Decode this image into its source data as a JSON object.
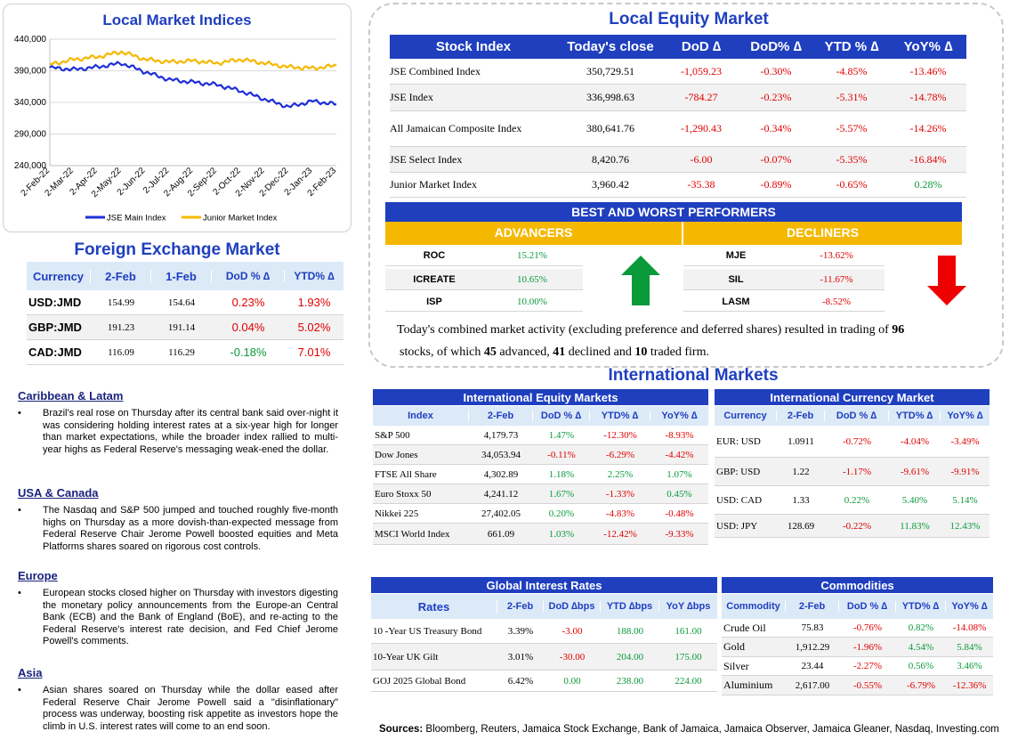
{
  "local_indices": {
    "title": "Local Market Indices",
    "chart_data": {
      "type": "line",
      "x": [
        "2-Feb-22",
        "2-Mar-22",
        "2-Apr-22",
        "2-May-22",
        "2-Jun-22",
        "2-Jul-22",
        "2-Aug-22",
        "2-Sep-22",
        "2-Oct-22",
        "2-Nov-22",
        "2-Dec-22",
        "2-Jan-23",
        "2-Feb-23"
      ],
      "yticks": [
        "440,000",
        "390,000",
        "340,000",
        "290,000",
        "240,000"
      ],
      "ylim": [
        240000,
        440000
      ],
      "series": [
        {
          "name": "JSE Main Index",
          "color": "#1f2fd8",
          "values": [
            395000,
            392000,
            396000,
            402000,
            388000,
            376000,
            372000,
            368000,
            358000,
            345000,
            333000,
            342000,
            337000
          ]
        },
        {
          "name": "Junior Market Index",
          "color": "#f5b800",
          "values": [
            400000,
            408000,
            412000,
            420000,
            408000,
            404000,
            406000,
            402000,
            408000,
            402000,
            396000,
            394000,
            398000
          ]
        }
      ]
    }
  },
  "fx": {
    "title": "Foreign Exchange Market",
    "headers": [
      "Currency",
      "2-Feb",
      "1-Feb",
      "DoD % ∆",
      "YTD% ∆"
    ],
    "rows": [
      {
        "cur": "USD:JMD",
        "d1": "154.99",
        "d2": "154.64",
        "dod": "0.23%",
        "ytd": "1.93%",
        "dod_c": "neg",
        "ytd_c": "neg"
      },
      {
        "cur": "GBP:JMD",
        "d1": "191.23",
        "d2": "191.14",
        "dod": "0.04%",
        "ytd": "5.02%",
        "dod_c": "neg",
        "ytd_c": "neg"
      },
      {
        "cur": "CAD:JMD",
        "d1": "116.09",
        "d2": "116.29",
        "dod": "-0.18%",
        "ytd": "7.01%",
        "dod_c": "pos",
        "ytd_c": "neg"
      }
    ]
  },
  "news": [
    {
      "heading": "Caribbean & Latam",
      "text": "Brazil's real rose on Thursday after its central bank said over-night it was considering holding interest rates at a six-year high for longer than market expectations, while the broader index rallied to multi-year highs as Federal Reserve's messaging weak-ened the dollar."
    },
    {
      "heading": "USA & Canada",
      "text": "The Nasdaq and S&P 500 jumped and touched roughly five-month highs on Thursday as a more dovish-than-expected message from Federal Reserve Chair Jerome Powell boosted equities and Meta Platforms shares soared on rigorous cost controls."
    },
    {
      "heading": "Europe",
      "text": "European stocks closed higher on Thursday with investors digesting the monetary policy announcements from the Europe-an Central Bank (ECB) and the Bank of England (BoE), and re-acting to the Federal Reserve's interest rate decision, and Fed Chief Jerome Powell's comments."
    },
    {
      "heading": "Asia",
      "text": "Asian shares soared on Thursday while the dollar eased after Federal Reserve Chair Jerome Powell said a \"disinflationary\" process was underway, boosting risk appetite as investors hope the climb in U.S. interest rates will come to an end soon."
    }
  ],
  "equity": {
    "title": "Local Equity Market",
    "headers": [
      "Stock Index",
      "Today's close",
      "DoD  ∆",
      "DoD% ∆",
      "YTD % ∆",
      "YoY% ∆"
    ],
    "rows": [
      {
        "name": "JSE Combined Index",
        "close": "350,729.51",
        "dod": "-1,059.23",
        "dodp": "-0.30%",
        "ytd": "-4.85%",
        "yoy": "-13.46%",
        "c": [
          "neg",
          "neg",
          "neg",
          "neg"
        ]
      },
      {
        "name": "JSE Index",
        "close": "336,998.63",
        "dod": "-784.27",
        "dodp": "-0.23%",
        "ytd": "-5.31%",
        "yoy": "-14.78%",
        "c": [
          "neg",
          "neg",
          "neg",
          "neg"
        ]
      },
      {
        "name": "All Jamaican Composite Index",
        "close": "380,641.76",
        "dod": "-1,290.43",
        "dodp": "-0.34%",
        "ytd": "-5.57%",
        "yoy": "-14.26%",
        "c": [
          "neg",
          "neg",
          "neg",
          "neg"
        ]
      },
      {
        "name": "JSE Select Index",
        "close": "8,420.76",
        "dod": "-6.00",
        "dodp": "-0.07%",
        "ytd": "-5.35%",
        "yoy": "-16.84%",
        "c": [
          "neg",
          "neg",
          "neg",
          "neg"
        ]
      },
      {
        "name": "Junior Market Index",
        "close": "3,960.42",
        "dod": "-35.38",
        "dodp": "-0.89%",
        "ytd": "-0.65%",
        "yoy": "0.28%",
        "c": [
          "neg",
          "neg",
          "neg",
          "pos"
        ]
      }
    ]
  },
  "performers": {
    "title": "BEST AND WORST PERFORMERS",
    "advancers_label": "ADVANCERS",
    "decliners_label": "DECLINERS",
    "advancers": [
      {
        "sym": "ROC",
        "pct": "15.21%"
      },
      {
        "sym": "ICREATE",
        "pct": "10.65%"
      },
      {
        "sym": "ISP",
        "pct": "10.00%"
      }
    ],
    "decliners": [
      {
        "sym": "MJE",
        "pct": "-13.62%"
      },
      {
        "sym": "SIL",
        "pct": "-11.67%"
      },
      {
        "sym": "LASM",
        "pct": "-8.52%"
      }
    ]
  },
  "summary": {
    "p1": "Today's combined market activity (excluding preference and deferred shares) resulted in trading of ",
    "n_total": "96",
    "p2": " stocks, of which ",
    "n_adv": "45",
    "p3": " advanced, ",
    "n_dec": "41",
    "p4": " declined and ",
    "n_firm": "10",
    "p5": " traded firm."
  },
  "intl": {
    "title": "International Markets",
    "equity": {
      "title": "International Equity Markets",
      "headers": [
        "Index",
        "2-Feb",
        "DoD % ∆",
        "YTD% ∆",
        "YoY% ∆"
      ],
      "rows": [
        {
          "n": "S&P 500",
          "v": "4,179.73",
          "dod": "1.47%",
          "ytd": "-12.30%",
          "yoy": "-8.93%",
          "c": [
            "pos",
            "neg",
            "neg"
          ]
        },
        {
          "n": "Dow Jones",
          "v": "34,053.94",
          "dod": "-0.11%",
          "ytd": "-6.29%",
          "yoy": "-4.42%",
          "c": [
            "neg",
            "neg",
            "neg"
          ]
        },
        {
          "n": "FTSE All Share",
          "v": "4,302.89",
          "dod": "1.18%",
          "ytd": "2.25%",
          "yoy": "1.07%",
          "c": [
            "pos",
            "pos",
            "pos"
          ]
        },
        {
          "n": "Euro Stoxx 50",
          "v": "4,241.12",
          "dod": "1.67%",
          "ytd": "-1.33%",
          "yoy": "0.45%",
          "c": [
            "pos",
            "neg",
            "pos"
          ]
        },
        {
          "n": "Nikkei 225",
          "v": "27,402.05",
          "dod": "0.20%",
          "ytd": "-4.83%",
          "yoy": "-0.48%",
          "c": [
            "pos",
            "neg",
            "neg"
          ]
        },
        {
          "n": "MSCI World Index",
          "v": "661.09",
          "dod": "1.03%",
          "ytd": "-12.42%",
          "yoy": "-9.33%",
          "c": [
            "pos",
            "neg",
            "neg"
          ]
        }
      ]
    },
    "currency": {
      "title": "International Currency Market",
      "headers": [
        "Currency",
        "2-Feb",
        "DoD % ∆",
        "YTD% ∆",
        "YoY% ∆"
      ],
      "rows": [
        {
          "n": "EUR: USD",
          "v": "1.0911",
          "dod": "-0.72%",
          "ytd": "-4.04%",
          "yoy": "-3.49%",
          "c": [
            "neg",
            "neg",
            "neg"
          ]
        },
        {
          "n": "GBP: USD",
          "v": "1.22",
          "dod": "-1.17%",
          "ytd": "-9.61%",
          "yoy": "-9.91%",
          "c": [
            "neg",
            "neg",
            "neg"
          ]
        },
        {
          "n": "USD: CAD",
          "v": "1.33",
          "dod": "0.22%",
          "ytd": "5.40%",
          "yoy": "5.14%",
          "c": [
            "pos",
            "pos",
            "pos"
          ]
        },
        {
          "n": "USD: JPY",
          "v": "128.69",
          "dod": "-0.22%",
          "ytd": "11.83%",
          "yoy": "12.43%",
          "c": [
            "neg",
            "pos",
            "pos"
          ]
        }
      ]
    },
    "rates": {
      "title": "Global Interest Rates",
      "headers": [
        "Rates",
        "2-Feb",
        "DoD ∆bps",
        "YTD ∆bps",
        "YoY ∆bps"
      ],
      "rows": [
        {
          "n": "10 -Year US Treasury Bond",
          "v": "3.39%",
          "dod": "-3.00",
          "ytd": "188.00",
          "yoy": "161.00",
          "c": [
            "neg",
            "pos",
            "pos"
          ]
        },
        {
          "n": "10-Year UK Gilt",
          "v": "3.01%",
          "dod": "-30.00",
          "ytd": "204.00",
          "yoy": "175.00",
          "c": [
            "neg",
            "pos",
            "pos"
          ]
        },
        {
          "n": "GOJ 2025 Global Bond",
          "v": "6.42%",
          "dod": "0.00",
          "ytd": "238.00",
          "yoy": "224.00",
          "c": [
            "pos",
            "pos",
            "pos"
          ]
        }
      ]
    },
    "commodities": {
      "title": "Commodities",
      "headers": [
        "Commodity",
        "2-Feb",
        "DoD % ∆",
        "YTD% ∆",
        "YoY% ∆"
      ],
      "rows": [
        {
          "n": "Crude Oil",
          "v": "75.83",
          "dod": "-0.76%",
          "ytd": "0.82%",
          "yoy": "-14.08%",
          "c": [
            "neg",
            "pos",
            "neg"
          ]
        },
        {
          "n": "Gold",
          "v": "1,912.29",
          "dod": "-1.96%",
          "ytd": "4.54%",
          "yoy": "5.84%",
          "c": [
            "neg",
            "pos",
            "pos"
          ]
        },
        {
          "n": "Silver",
          "v": "23.44",
          "dod": "-2.27%",
          "ytd": "0.56%",
          "yoy": "3.46%",
          "c": [
            "neg",
            "pos",
            "pos"
          ]
        },
        {
          "n": "Aluminium",
          "v": "2,617.00",
          "dod": "-0.55%",
          "ytd": "-6.79%",
          "yoy": "-12.36%",
          "c": [
            "neg",
            "neg",
            "neg"
          ]
        }
      ]
    }
  },
  "sources": {
    "label": "Sources:",
    "text": " Bloomberg, Reuters, Jamaica Stock Exchange, Bank of Jamaica, Jamaica Observer, Jamaica Gleaner, Nasdaq, Investing.com"
  }
}
